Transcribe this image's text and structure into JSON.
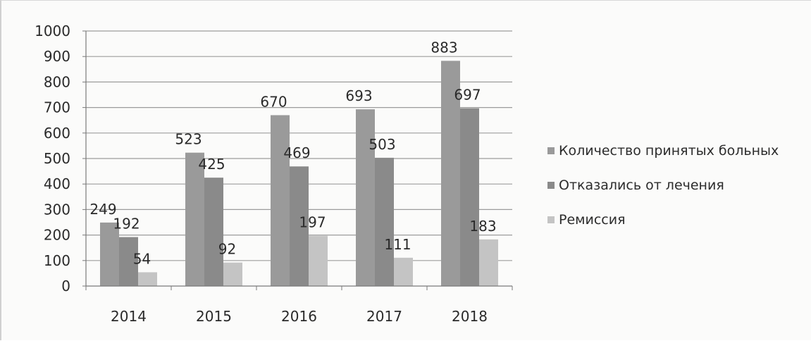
{
  "chart_data": {
    "type": "bar",
    "categories": [
      "2014",
      "2015",
      "2016",
      "2017",
      "2018"
    ],
    "series": [
      {
        "name": "Количество принятых больных",
        "values": [
          249,
          523,
          670,
          693,
          883
        ],
        "color": "#9a9a9a"
      },
      {
        "name": "Отказались от лечения",
        "values": [
          192,
          425,
          469,
          503,
          697
        ],
        "color": "#8a8a8a"
      },
      {
        "name": "Ремиссия",
        "values": [
          54,
          92,
          197,
          111,
          183
        ],
        "color": "#c4c4c4"
      }
    ],
    "ylim": [
      0,
      1000
    ],
    "yticks": [
      "0",
      "100",
      "200",
      "300",
      "400",
      "500",
      "600",
      "700",
      "800",
      "900",
      "1000"
    ],
    "grid": true,
    "legend_position": "right"
  }
}
